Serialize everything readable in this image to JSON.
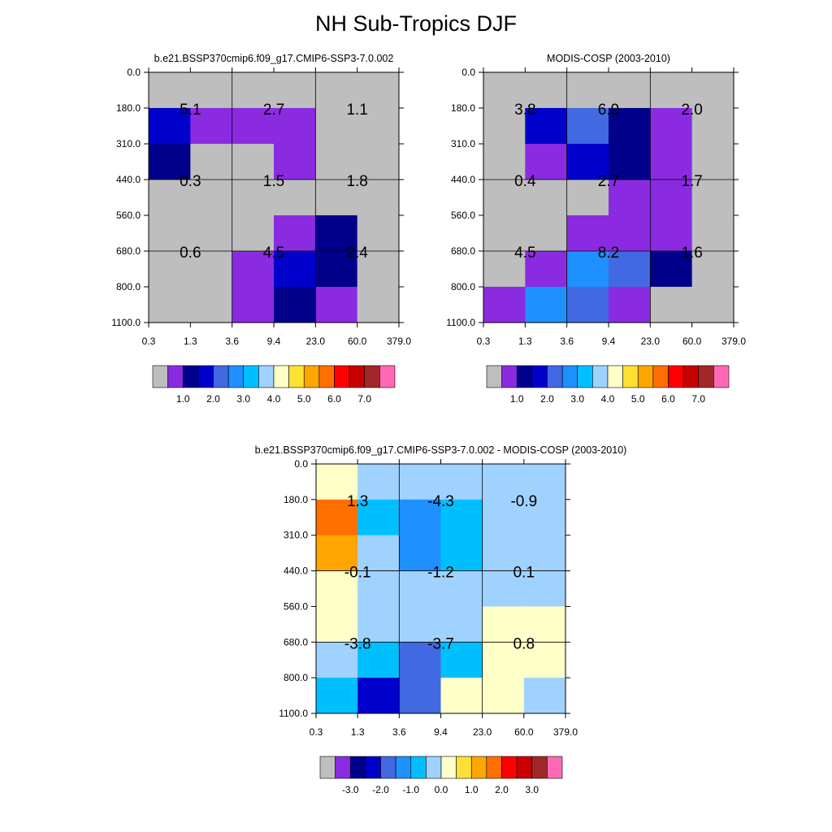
{
  "page": {
    "title": "NH Sub-Tropics DJF"
  },
  "palette": {
    "gray": "#bebebe",
    "violet": "#8a2be2",
    "navy": "#00008b",
    "blue": "#0000cd",
    "royal": "#4169e1",
    "dodger": "#1e90ff",
    "sky": "#00bfff",
    "lightblue": "#a0d2ff",
    "cream": "#ffffc8",
    "yellow": "#ffe135",
    "gold": "#ffa500",
    "orange": "#ff7000",
    "red": "#ff0000",
    "darkred": "#c80000",
    "brown": "#a02828",
    "pink": "#ff69b4"
  },
  "chart_data": [
    {
      "type": "heatmap",
      "name": "model-panel",
      "title": "b.e21.BSSP370cmip6.f09_g17.CMIP6-SSP3-7.0.002",
      "xlabel": "",
      "ylabel": "",
      "x_tick_labels": [
        "0.3",
        "1.3",
        "3.6",
        "9.4",
        "23.0",
        "60.0",
        "379.0"
      ],
      "y_tick_labels": [
        "0.0",
        "180.0",
        "310.0",
        "440.0",
        "560.0",
        "680.0",
        "800.0",
        "1100.0"
      ],
      "cells": [
        [
          "gray",
          "gray",
          "gray",
          "gray",
          "gray",
          "gray"
        ],
        [
          "blue",
          "violet",
          "violet",
          "violet",
          "gray",
          "gray"
        ],
        [
          "navy",
          "gray",
          "gray",
          "violet",
          "gray",
          "gray"
        ],
        [
          "gray",
          "gray",
          "gray",
          "gray",
          "gray",
          "gray"
        ],
        [
          "gray",
          "gray",
          "gray",
          "violet",
          "navy",
          "gray"
        ],
        [
          "gray",
          "gray",
          "violet",
          "blue",
          "navy",
          "gray"
        ],
        [
          "gray",
          "gray",
          "violet",
          "navy",
          "violet",
          "gray"
        ]
      ],
      "box_values": [
        [
          "5.1",
          "2.7",
          "1.1"
        ],
        [
          "0.3",
          "1.5",
          "1.8"
        ],
        [
          "0.6",
          "4.5",
          "2.4"
        ]
      ],
      "colorbar": {
        "colors": [
          "gray",
          "violet",
          "navy",
          "blue",
          "royal",
          "dodger",
          "sky",
          "lightblue",
          "cream",
          "yellow",
          "gold",
          "orange",
          "red",
          "darkred",
          "brown",
          "pink"
        ],
        "labels": [
          "1.0",
          "2.0",
          "3.0",
          "4.0",
          "5.0",
          "6.0",
          "7.0"
        ],
        "label_start": 2
      }
    },
    {
      "type": "heatmap",
      "name": "obs-panel",
      "title": "MODIS-COSP (2003-2010)",
      "xlabel": "",
      "ylabel": "",
      "x_tick_labels": [
        "0.3",
        "1.3",
        "3.6",
        "9.4",
        "23.0",
        "60.0",
        "379.0"
      ],
      "y_tick_labels": [
        "0.0",
        "180.0",
        "310.0",
        "440.0",
        "560.0",
        "680.0",
        "800.0",
        "1100.0"
      ],
      "cells": [
        [
          "gray",
          "gray",
          "gray",
          "gray",
          "gray",
          "gray"
        ],
        [
          "gray",
          "blue",
          "royal",
          "navy",
          "violet",
          "gray"
        ],
        [
          "gray",
          "violet",
          "blue",
          "navy",
          "violet",
          "gray"
        ],
        [
          "gray",
          "gray",
          "gray",
          "violet",
          "violet",
          "gray"
        ],
        [
          "gray",
          "gray",
          "violet",
          "violet",
          "violet",
          "gray"
        ],
        [
          "gray",
          "violet",
          "dodger",
          "royal",
          "navy",
          "gray"
        ],
        [
          "violet",
          "dodger",
          "royal",
          "violet",
          "gray",
          "gray"
        ]
      ],
      "box_values": [
        [
          "3.8",
          "6.9",
          "2.0"
        ],
        [
          "0.4",
          "2.7",
          "1.7"
        ],
        [
          "4.5",
          "8.2",
          "1.6"
        ]
      ],
      "colorbar": {
        "colors": [
          "gray",
          "violet",
          "navy",
          "blue",
          "royal",
          "dodger",
          "sky",
          "lightblue",
          "cream",
          "yellow",
          "gold",
          "orange",
          "red",
          "darkred",
          "brown",
          "pink"
        ],
        "labels": [
          "1.0",
          "2.0",
          "3.0",
          "4.0",
          "5.0",
          "6.0",
          "7.0"
        ],
        "label_start": 2
      }
    },
    {
      "type": "heatmap",
      "name": "diff-panel",
      "title": "b.e21.BSSP370cmip6.f09_g17.CMIP6-SSP3-7.0.002 - MODIS-COSP (2003-2010)",
      "xlabel": "",
      "ylabel": "",
      "x_tick_labels": [
        "0.3",
        "1.3",
        "3.6",
        "9.4",
        "23.0",
        "60.0",
        "379.0"
      ],
      "y_tick_labels": [
        "0.0",
        "180.0",
        "310.0",
        "440.0",
        "560.0",
        "680.0",
        "800.0",
        "1100.0"
      ],
      "cells": [
        [
          "cream",
          "lightblue",
          "lightblue",
          "lightblue",
          "lightblue",
          "lightblue"
        ],
        [
          "orange",
          "sky",
          "dodger",
          "sky",
          "lightblue",
          "lightblue"
        ],
        [
          "gold",
          "lightblue",
          "dodger",
          "sky",
          "lightblue",
          "lightblue"
        ],
        [
          "cream",
          "lightblue",
          "lightblue",
          "lightblue",
          "lightblue",
          "lightblue"
        ],
        [
          "cream",
          "lightblue",
          "lightblue",
          "lightblue",
          "cream",
          "cream"
        ],
        [
          "lightblue",
          "sky",
          "royal",
          "sky",
          "cream",
          "cream"
        ],
        [
          "sky",
          "blue",
          "royal",
          "cream",
          "cream",
          "lightblue"
        ]
      ],
      "box_values": [
        [
          "1.3",
          "-4.3",
          "-0.9"
        ],
        [
          "-0.1",
          "-1.2",
          "0.1"
        ],
        [
          "-3.8",
          "-3.7",
          "0.8"
        ]
      ],
      "colorbar": {
        "colors": [
          "gray",
          "violet",
          "navy",
          "blue",
          "royal",
          "dodger",
          "sky",
          "lightblue",
          "cream",
          "yellow",
          "gold",
          "orange",
          "red",
          "darkred",
          "brown",
          "pink"
        ],
        "labels": [
          "-3.0",
          "-2.0",
          "-1.0",
          "0.0",
          "1.0",
          "2.0",
          "3.0"
        ],
        "label_start": 2
      }
    }
  ]
}
